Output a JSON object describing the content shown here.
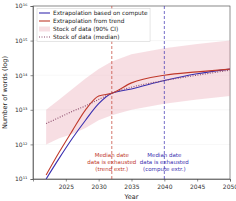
{
  "chart_data": {
    "type": "line",
    "x_label": "Year",
    "y_label": "Number of words (log)",
    "log": "y",
    "legend": "upper left",
    "x": [
      2022,
      2024,
      2026,
      2028,
      2030,
      2032,
      2035,
      2040,
      2045,
      2050
    ],
    "xlim": [
      2020,
      2050
    ],
    "xticks": [
      2025,
      2030,
      2035,
      2040,
      2045,
      2050
    ],
    "ylim": [
      100000000000,
      10000000000000000
    ],
    "yticks": [
      {
        "value": 100000000000,
        "label": "10¹¹"
      },
      {
        "value": 1000000000000,
        "label": "10¹²"
      },
      {
        "value": 10000000000000,
        "label": "10¹³"
      },
      {
        "value": 100000000000000,
        "label": "10¹⁴"
      },
      {
        "value": 1000000000000000,
        "label": "10¹⁵"
      },
      {
        "value": 10000000000000000,
        "label": "10¹⁶"
      }
    ],
    "series": [
      {
        "name": "Extrapolation based on compute",
        "color": "#3a2fb0",
        "line_style": "solid",
        "values": [
          100000000000,
          400000000000,
          1500000000000,
          5000000000000,
          15000000000000,
          30000000000000,
          40000000000000,
          70000000000000,
          110000000000000,
          150000000000000
        ]
      },
      {
        "name": "Extrapolation from trend",
        "color": "#c0392b",
        "line_style": "solid",
        "values": [
          130000000000,
          600000000000,
          2500000000000,
          10000000000000,
          25000000000000,
          30000000000000,
          60000000000000,
          100000000000000,
          125000000000000,
          150000000000000
        ]
      },
      {
        "name": "Stock of data (90% CI)",
        "color": "#e8a0b0",
        "type": "area",
        "lower": [
          1000000000000,
          1500000000000,
          2000000000000,
          3000000000000,
          5000000000000,
          7000000000000,
          10000000000000,
          15000000000000,
          20000000000000,
          25000000000000
        ],
        "upper": [
          10000000000000,
          20000000000000,
          40000000000000,
          80000000000000,
          150000000000000,
          250000000000000,
          400000000000000,
          600000000000000,
          800000000000000,
          1000000000000000
        ]
      },
      {
        "name": "Stock of data (median)",
        "color": "#8a4a6a",
        "line_style": "dotted",
        "values": [
          4000000000000,
          6000000000000,
          9000000000000,
          13000000000000,
          20000000000000,
          30000000000000,
          45000000000000,
          70000000000000,
          100000000000000,
          140000000000000
        ]
      }
    ],
    "annotations": [
      {
        "x": 2032,
        "color": "#c0392b",
        "line_style": "dashed",
        "text": [
          "Median date",
          "data is exhausted",
          "(trend extr.)"
        ]
      },
      {
        "x": 2040,
        "color": "#3a2fb0",
        "line_style": "dashed",
        "text": [
          "Median date",
          "data is exhausted",
          "(compute extr.)"
        ]
      }
    ]
  }
}
